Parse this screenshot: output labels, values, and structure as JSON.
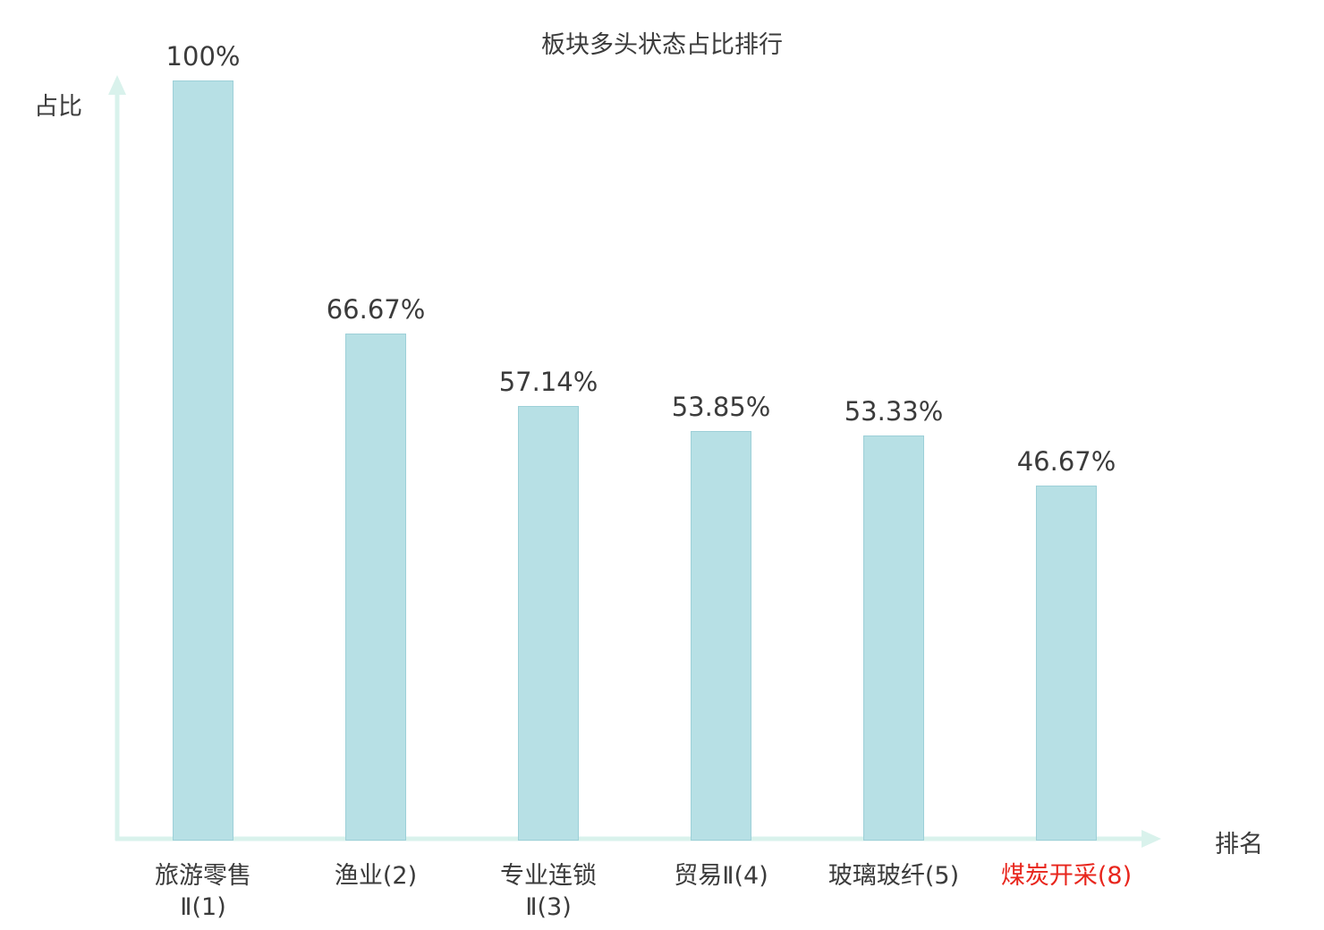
{
  "chart_data": {
    "type": "bar",
    "title": "板块多头状态占比排行",
    "xlabel": "排名",
    "ylabel": "占比",
    "categories": [
      "旅游零售Ⅱ(1)",
      "渔业(2)",
      "专业连锁Ⅱ(3)",
      "贸易Ⅱ(4)",
      "玻璃玻纤(5)",
      "煤炭开采(8)"
    ],
    "category_lines": [
      [
        "旅游零售",
        "Ⅱ(1)"
      ],
      [
        "渔业(2)"
      ],
      [
        "专业连锁",
        "Ⅱ(3)"
      ],
      [
        "贸易Ⅱ(4)"
      ],
      [
        "玻璃玻纤(5)"
      ],
      [
        "煤炭开采(8)"
      ]
    ],
    "values": [
      100,
      66.67,
      57.14,
      53.85,
      53.33,
      46.67
    ],
    "value_labels": [
      "100%",
      "66.67%",
      "57.14%",
      "53.85%",
      "53.33%",
      "46.67%"
    ],
    "highlight_index": 5,
    "highlight_color": "#e8261d",
    "bar_color": "#b7e0e5",
    "bar_border_color": "#9dd0d8",
    "axis_color": "#d9f2ec",
    "text_color": "#3b3b3b",
    "ylim": [
      0,
      100
    ],
    "grid": false,
    "legend": "none"
  }
}
